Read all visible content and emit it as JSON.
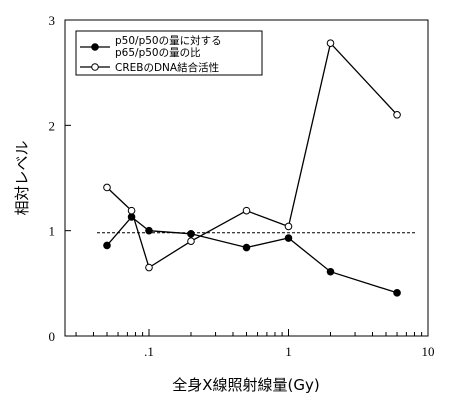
{
  "chart_data": {
    "type": "line",
    "xlabel": "全身X線照射線量(Gy)",
    "ylabel": "相対レベル",
    "xscale": "log",
    "xlim": [
      0.025,
      10
    ],
    "ylim": [
      0,
      3
    ],
    "x_ticks": [
      0.1,
      1,
      10
    ],
    "x_tick_labels": [
      ".1",
      "1",
      "10"
    ],
    "y_ticks": [
      0,
      1,
      2,
      3
    ],
    "y_tick_labels": [
      "0",
      "1",
      "2",
      "3"
    ],
    "reference_line": {
      "y": 0.98,
      "style": "dashed"
    },
    "legend_position": "top-left",
    "series": [
      {
        "name_lines": [
          "p50/p50の量に対する",
          "p65/p50の量の比"
        ],
        "marker": "filled-circle",
        "x": [
          0.05,
          0.075,
          0.1,
          0.2,
          0.5,
          1,
          2,
          6
        ],
        "values": [
          0.86,
          1.13,
          1.0,
          0.97,
          0.84,
          0.93,
          0.61,
          0.41
        ]
      },
      {
        "name": "CREBのDNA結合活性",
        "marker": "open-circle",
        "x": [
          0.05,
          0.075,
          0.1,
          0.2,
          0.5,
          1,
          2,
          6
        ],
        "values": [
          1.41,
          1.19,
          0.65,
          0.9,
          1.19,
          1.04,
          2.78,
          2.1
        ]
      }
    ]
  }
}
